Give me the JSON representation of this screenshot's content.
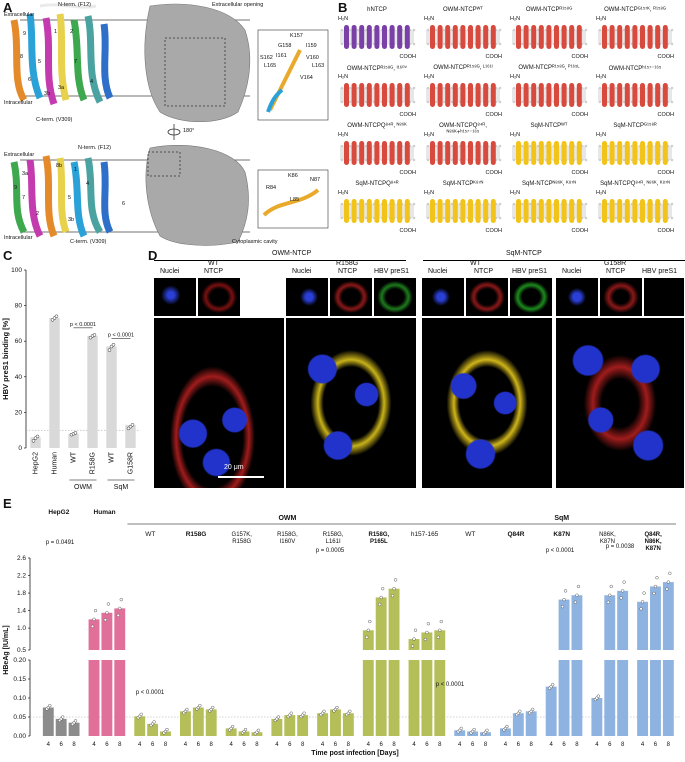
{
  "panels": {
    "A": "A",
    "B": "B",
    "C": "C",
    "D": "D",
    "E": "E"
  },
  "panelA": {
    "extracellular_top": "Extracellular",
    "intracellular_top": "Intracellular",
    "extracellular_bottom": "Extracellular",
    "intracellular_bottom": "Intracellular",
    "nterm_top": "N-term. (F12)",
    "cterm_top": "C-term. (V309)",
    "nterm_bottom": "N-term. (F12)",
    "cterm_bottom": "C-term. (V309)",
    "extracellular_opening": "Extracellular opening",
    "cytoplasmic_cavity": "Cytoplasmic cavity",
    "rotation": "180°",
    "inset1_residues": [
      "K157",
      "G158",
      "I159",
      "S162",
      "I161",
      "V160",
      "L165",
      "L163",
      "V164"
    ],
    "inset2_residues": [
      "K86",
      "N87",
      "R84",
      "L85"
    ],
    "helix_numbers_top": [
      "9",
      "1",
      "2",
      "8",
      "5",
      "6",
      "7",
      "3a",
      "3b",
      "4"
    ],
    "helix_numbers_bottom": [
      "3a",
      "8b",
      "1",
      "4",
      "5",
      "7",
      "2",
      "3b",
      "6",
      "9"
    ]
  },
  "panelB": {
    "h2n": "H₂N",
    "cooh": "COOH",
    "items": [
      {
        "label": "hNTCP",
        "color": "#7b3fa8"
      },
      {
        "label": "OWM-NTCPᵂᵀ",
        "color": "#d84a3e"
      },
      {
        "label": "OWM-NTCPᴿ¹⁵⁸ᴳ",
        "color": "#d84a3e"
      },
      {
        "label": "OWM-NTCPᴳ¹⁵⁷ᴷ, ᴿ¹⁵⁸ᴳ",
        "color": "#d84a3e"
      },
      {
        "label": "OWM-NTCPᴿ¹⁵⁸ᴳ, ᴵ¹⁶⁰ⱽ",
        "color": "#d84a3e"
      },
      {
        "label": "OWM-NTCPᴿ¹⁵⁸ᴳ, ᴸ¹⁶¹ᴵ",
        "color": "#d84a3e"
      },
      {
        "label": "OWM-NTCPᴿ¹⁵⁸ᴳ, ᴾ¹⁶⁵ᴸ",
        "color": "#d84a3e"
      },
      {
        "label": "OWM-NTCPʰ¹⁵⁷⁻¹⁶⁵",
        "color": "#d84a3e"
      },
      {
        "label": "OWM-NTCPQ⁸⁴ᴿ, ᴺ⁸⁶ᴷ",
        "color": "#d84a3e"
      },
      {
        "label": "OWM-NTCPQ⁸⁴ᴿ, ᴺ⁸⁶ᴷ+ʰ¹⁵⁷⁻¹⁶⁵",
        "color": "#d84a3e"
      },
      {
        "label": "SqM-NTCPᵂᵀ",
        "color": "#f2c318"
      },
      {
        "label": "SqM-NTCPᴳ¹⁵⁸ᴿ",
        "color": "#f2c318"
      },
      {
        "label": "SqM-NTCPQ⁸⁴ᴿ",
        "color": "#f2c318"
      },
      {
        "label": "SqM-NTCPᴷ⁸⁷ᴺ",
        "color": "#f2c318"
      },
      {
        "label": "SqM-NTCPᴺ⁸⁶ᴷ, ᴷ⁸⁷ᴺ",
        "color": "#f2c318"
      },
      {
        "label": "SqM-NTCPQ⁸⁴ᴿ, ᴺ⁸⁶ᴷ, ᴷ⁸⁷ᴺ",
        "color": "#f2c318"
      }
    ]
  },
  "chart_data": [
    {
      "type": "bar",
      "panel": "C",
      "ylabel": "HBV preS1 binding [%]",
      "ylim": [
        0,
        100
      ],
      "yticks": [
        0,
        20,
        40,
        60,
        80,
        100
      ],
      "categories": [
        "HepG2",
        "Human",
        "WT",
        "R158G",
        "WT",
        "G158R"
      ],
      "groups": [
        {
          "name": "OWM",
          "from": 2,
          "to": 3
        },
        {
          "name": "SqM",
          "from": 4,
          "to": 5
        }
      ],
      "values": [
        6,
        73,
        8,
        63,
        57,
        13
      ],
      "points": [
        [
          4,
          5.5,
          6.5
        ],
        [
          72,
          73,
          74
        ],
        [
          7.5,
          8,
          8.5
        ],
        [
          62,
          63,
          63.5
        ],
        [
          55,
          57,
          58
        ],
        [
          11,
          12,
          13
        ]
      ],
      "annotations": [
        {
          "text": "p < 0.0001",
          "from": 2,
          "to": 3
        },
        {
          "text": "p < 0.0001",
          "from": 4,
          "to": 5
        }
      ],
      "reference_line": 10,
      "bar_color": "#d9d9d9"
    },
    {
      "type": "bar",
      "panel": "E",
      "ylabel": "HBeAg [IU/mL]",
      "xlabel": "Time post infection [Days]",
      "broken_axis": {
        "lower": [
          0,
          0.2
        ],
        "upper": [
          0.5,
          2.6
        ]
      },
      "yticks_lower": [
        0.0,
        0.05,
        0.1,
        0.15,
        0.2
      ],
      "yticks_upper": [
        0.5,
        1.0,
        1.4,
        1.8,
        2.2,
        2.6
      ],
      "day_ticks": [
        "4",
        "6",
        "8"
      ],
      "reference_line": 0.05,
      "groups": [
        {
          "name": "HepG2",
          "bold": true,
          "color": "#8c8c8c",
          "values": [
            0.075,
            0.045,
            0.035
          ]
        },
        {
          "name": "Human",
          "bold": true,
          "color": "#e0709a",
          "values": [
            1.2,
            1.35,
            1.45
          ]
        },
        {
          "name": "WT",
          "section": "OWM",
          "color": "#b5bf5a",
          "values": [
            0.052,
            0.032,
            0.012
          ]
        },
        {
          "name": "R158G",
          "section": "OWM",
          "bold": true,
          "color": "#b5bf5a",
          "values": [
            0.065,
            0.075,
            0.07
          ]
        },
        {
          "name": "G157K, R158G",
          "section": "OWM",
          "color": "#b5bf5a",
          "values": [
            0.02,
            0.012,
            0.01
          ]
        },
        {
          "name": "R158G, I160V",
          "section": "OWM",
          "color": "#b5bf5a",
          "values": [
            0.045,
            0.055,
            0.055
          ]
        },
        {
          "name": "R158G, L161I",
          "section": "OWM",
          "color": "#b5bf5a",
          "values": [
            0.06,
            0.07,
            0.06
          ]
        },
        {
          "name": "R158G, P165L",
          "section": "OWM",
          "bold": true,
          "color": "#b5bf5a",
          "values": [
            0.95,
            1.7,
            1.9
          ]
        },
        {
          "name": "h157-165",
          "section": "OWM",
          "color": "#b5bf5a",
          "values": [
            0.75,
            0.9,
            0.95
          ]
        },
        {
          "name": "WT",
          "section": "SqM",
          "color": "#8fb3e0",
          "values": [
            0.015,
            0.012,
            0.01
          ]
        },
        {
          "name": "Q84R",
          "section": "SqM",
          "bold": true,
          "color": "#8fb3e0",
          "values": [
            0.02,
            0.06,
            0.065
          ]
        },
        {
          "name": "K87N",
          "section": "SqM",
          "bold": true,
          "color": "#8fb3e0",
          "values": [
            0.13,
            1.65,
            1.75
          ]
        },
        {
          "name": "N86K, K87N",
          "section": "SqM",
          "color": "#8fb3e0",
          "values": [
            0.1,
            1.75,
            1.85
          ]
        },
        {
          "name": "Q84R, N86K, K87N",
          "section": "SqM",
          "bold": true,
          "color": "#8fb3e0",
          "values": [
            1.6,
            1.95,
            2.05
          ]
        }
      ],
      "sections": [
        "OWM",
        "SqM"
      ],
      "annotations": [
        {
          "text": "p = 0.0491"
        },
        {
          "text": "p = 0.0005"
        },
        {
          "text": "p < 0.0001"
        },
        {
          "text": "p < 0.0001"
        },
        {
          "text": "p < 0.0001"
        },
        {
          "text": "p = 0.0038"
        }
      ]
    }
  ],
  "panelD": {
    "groups": [
      "OWM-NTCP",
      "SqM-NTCP"
    ],
    "subgroups": [
      "WT",
      "R158G",
      "WT",
      "G158R"
    ],
    "channels": [
      "Nuclei",
      "NTCP",
      "HBV preS1"
    ],
    "scale_bar": "20 μm"
  }
}
